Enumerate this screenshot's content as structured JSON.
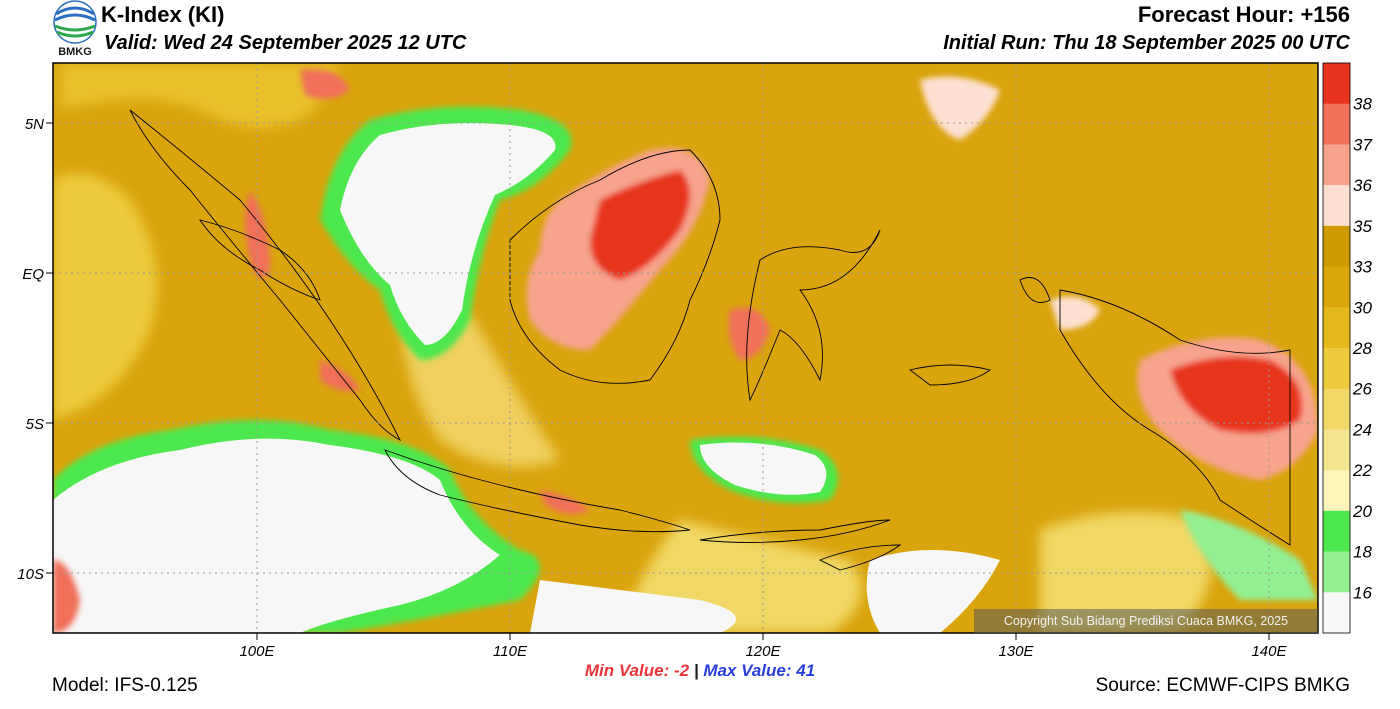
{
  "header": {
    "title": "K-Index (KI)",
    "valid": "Valid: Wed 24 September 2025 12 UTC",
    "forecast_hour": "Forecast Hour: +156",
    "initial_run": "Initial Run: Thu 18 September 2025 00 UTC",
    "logo_text": "BMKG"
  },
  "map": {
    "lat_labels": [
      "5N",
      "EQ",
      "5S",
      "10S"
    ],
    "lon_labels": [
      "100E",
      "110E",
      "120E",
      "130E",
      "140E"
    ],
    "colorbar": {
      "levels": [
        "38",
        "37",
        "36",
        "35",
        "33",
        "30",
        "28",
        "26",
        "24",
        "22",
        "20",
        "18",
        "16"
      ],
      "colors": [
        "#e8341f",
        "#f0705a",
        "#f7a38e",
        "#fde0d2",
        "#cf9a00",
        "#daa60a",
        "#e5b81c",
        "#ecca3c",
        "#f1d866",
        "#f4e590",
        "#fdf4b8",
        "#4ee84e",
        "#93f093",
        "#f7f7f7"
      ]
    },
    "copyright": "Copyright Sub Bidang Prediksi Cuaca BMKG, 2025"
  },
  "footer": {
    "min_label": "Min Value:  -2",
    "separator": "|",
    "max_label": "Max Value:  41",
    "model": "Model: IFS-0.125",
    "source": "Source: ECMWF-CIPS BMKG"
  }
}
